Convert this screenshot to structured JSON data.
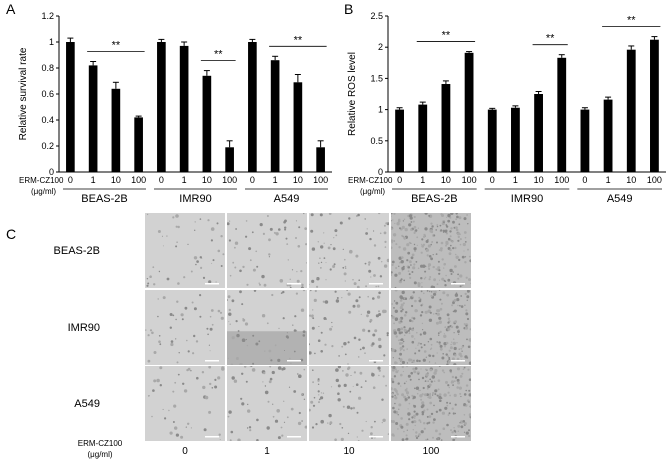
{
  "panels": [
    {
      "letter": "A",
      "chart_data": {
        "type": "bar",
        "ylabel": "Relative survival rate",
        "ylim": [
          0,
          1.2
        ],
        "yticks": [
          "0",
          "0.2",
          "0.4",
          "0.6",
          "0.8",
          "1",
          "1.2"
        ],
        "treatment_label": "ERM-CZ100",
        "unit_label": "(μg/ml)",
        "groups": [
          {
            "name": "BEAS-2B",
            "categories": [
              "0",
              "1",
              "10",
              "100"
            ],
            "values": [
              1.0,
              0.82,
              0.64,
              0.42
            ],
            "errors": [
              0.03,
              0.03,
              0.05,
              0.01
            ],
            "sig": {
              "label": "**",
              "from": 1,
              "to": 3
            }
          },
          {
            "name": "IMR90",
            "categories": [
              "0",
              "1",
              "10",
              "100"
            ],
            "values": [
              1.0,
              0.97,
              0.74,
              0.19
            ],
            "errors": [
              0.02,
              0.03,
              0.04,
              0.05
            ],
            "sig": {
              "label": "**",
              "from": 2,
              "to": 3
            }
          },
          {
            "name": "A549",
            "categories": [
              "0",
              "1",
              "10",
              "100"
            ],
            "values": [
              1.0,
              0.86,
              0.69,
              0.19
            ],
            "errors": [
              0.02,
              0.03,
              0.06,
              0.05
            ],
            "sig": {
              "label": "**",
              "from": 1,
              "to": 3
            }
          }
        ],
        "grid": false
      }
    },
    {
      "letter": "B",
      "chart_data": {
        "type": "bar",
        "ylabel": "Relative ROS level",
        "ylim": [
          0,
          2.5
        ],
        "yticks": [
          "0",
          "0.5",
          "1",
          "1.5",
          "2",
          "2.5"
        ],
        "treatment_label": "ERM-CZ100",
        "unit_label": "(μg/ml)",
        "groups": [
          {
            "name": "BEAS-2B",
            "categories": [
              "0",
              "1",
              "10",
              "100"
            ],
            "values": [
              1.0,
              1.08,
              1.41,
              1.91
            ],
            "errors": [
              0.03,
              0.04,
              0.05,
              0.02
            ],
            "sig": {
              "label": "**",
              "from": 1,
              "to": 3
            }
          },
          {
            "name": "IMR90",
            "categories": [
              "0",
              "1",
              "10",
              "100"
            ],
            "values": [
              1.0,
              1.03,
              1.25,
              1.83
            ],
            "errors": [
              0.02,
              0.03,
              0.04,
              0.05
            ],
            "sig": {
              "label": "**",
              "from": 2,
              "to": 3
            }
          },
          {
            "name": "A549",
            "categories": [
              "0",
              "1",
              "10",
              "100"
            ],
            "values": [
              1.0,
              1.16,
              1.96,
              2.12
            ],
            "errors": [
              0.03,
              0.04,
              0.06,
              0.05
            ],
            "sig": {
              "label": "**",
              "from": 1,
              "to": 3
            }
          }
        ],
        "grid": false
      }
    }
  ],
  "micrographs": {
    "letter": "C",
    "rows": [
      "BEAS-2B",
      "IMR90",
      "A549"
    ],
    "columns": [
      "0",
      "1",
      "10",
      "100"
    ],
    "treatment_label": "ERM-CZ100",
    "unit_label": "(μg/ml)",
    "colors": {
      "bright": "#d4d4d4",
      "dark": "#8a8a8a",
      "scale_bar": "#ffffff"
    }
  }
}
